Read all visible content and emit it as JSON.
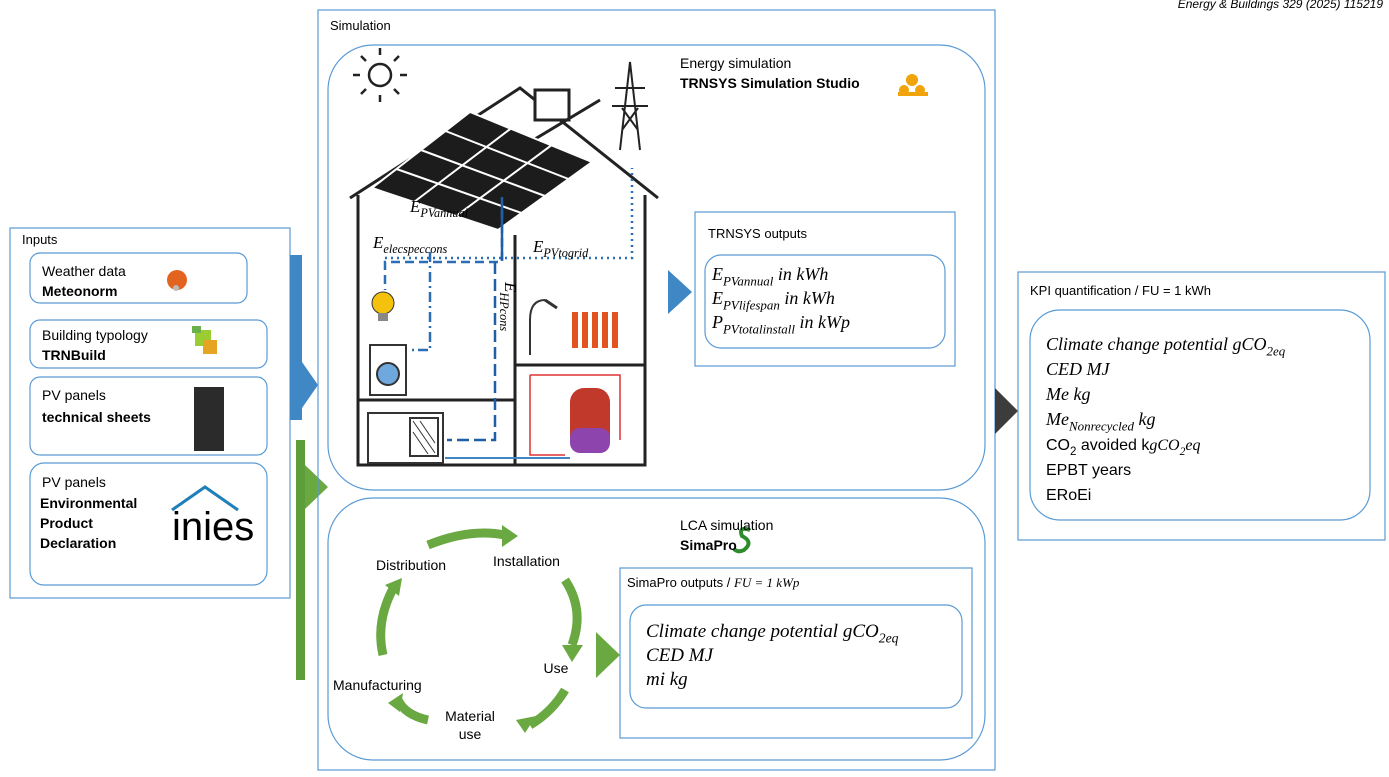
{
  "header": {
    "journal": "Energy & Buildings 329 (2025) 115219"
  },
  "inputs": {
    "title": "Inputs",
    "items": [
      {
        "label": "Weather data",
        "tool": "Meteonorm"
      },
      {
        "label": "Building typology",
        "tool": "TRNBuild"
      },
      {
        "label": "PV panels",
        "tool": "technical sheets"
      },
      {
        "label": "PV panels",
        "tool": "Environmental Product Declaration"
      }
    ],
    "logo": "inies"
  },
  "simulation": {
    "title": "Simulation",
    "energy": {
      "title": "Energy simulation",
      "tool": "TRNSYS Simulation Studio",
      "flows": [
        [
          {
            "text": "E",
            "italic": true
          },
          {
            "text": "PVannual",
            "italic": true,
            "sub": true
          }
        ],
        [
          {
            "text": "E",
            "italic": true
          },
          {
            "text": "elecspeccons",
            "italic": true,
            "sub": true
          }
        ],
        [
          {
            "text": "E",
            "italic": true
          },
          {
            "text": "PVtogrid",
            "italic": true,
            "sub": true
          }
        ],
        [
          {
            "text": "E",
            "italic": true
          },
          {
            "text": "HPcons",
            "italic": true,
            "sub": true
          }
        ]
      ],
      "outputs": {
        "title": "TRNSYS outputs",
        "lines": [
          [
            {
              "text": "E",
              "italic": true
            },
            {
              "text": "PVannual",
              "italic": true,
              "sub": true
            },
            {
              "text": " in kWh",
              "italic": true
            }
          ],
          [
            {
              "text": "E",
              "italic": true
            },
            {
              "text": "PVlifespan",
              "italic": true,
              "sub": true
            },
            {
              "text": " in kWh",
              "italic": true
            }
          ],
          [
            {
              "text": "P",
              "italic": true
            },
            {
              "text": "PVtotalinstall",
              "italic": true,
              "sub": true
            },
            {
              "text": " in kWp",
              "italic": true
            }
          ]
        ]
      }
    },
    "lca": {
      "title": "LCA simulation",
      "tool": "SimaPro",
      "cycle": [
        "Distribution",
        "Installation",
        "Use",
        "Material use",
        "Manufacturing"
      ],
      "outputs": {
        "title": [
          {
            "text": "SimaPro outputs / "
          },
          {
            "text": "FU = 1 kWp",
            "italic": true
          }
        ],
        "lines": [
          [
            {
              "text": "Climate change potential gCO",
              "italic": true
            },
            {
              "text": "2eq",
              "italic": true,
              "sub": true
            }
          ],
          [
            {
              "text": "CED  MJ",
              "italic": true
            }
          ],
          [
            {
              "text": "mi  kg",
              "italic": true
            }
          ]
        ]
      }
    }
  },
  "kpi": {
    "title": "KPI quantification / FU = 1 kWh",
    "lines": [
      [
        {
          "text": "Climate change potential gCO",
          "italic": true
        },
        {
          "text": "2eq",
          "italic": true,
          "sub": true
        }
      ],
      [
        {
          "text": "CED  MJ",
          "italic": true
        }
      ],
      [
        {
          "text": "Me  kg",
          "italic": true
        }
      ],
      [
        {
          "text": "Me",
          "italic": true
        },
        {
          "text": "Nonrecycled",
          "italic": true,
          "sub": true
        },
        {
          "text": " kg",
          "italic": true
        }
      ],
      [
        {
          "text": "CO"
        },
        {
          "text": "2",
          "sub": true
        },
        {
          "text": " avoided k"
        },
        {
          "text": "gCO",
          "italic": true
        },
        {
          "text": "2",
          "italic": true,
          "sub": true
        },
        {
          "text": "eq",
          "italic": true
        }
      ],
      [
        {
          "text": "EPBT  years"
        }
      ],
      [
        {
          "text": "ERoEi"
        }
      ]
    ]
  }
}
